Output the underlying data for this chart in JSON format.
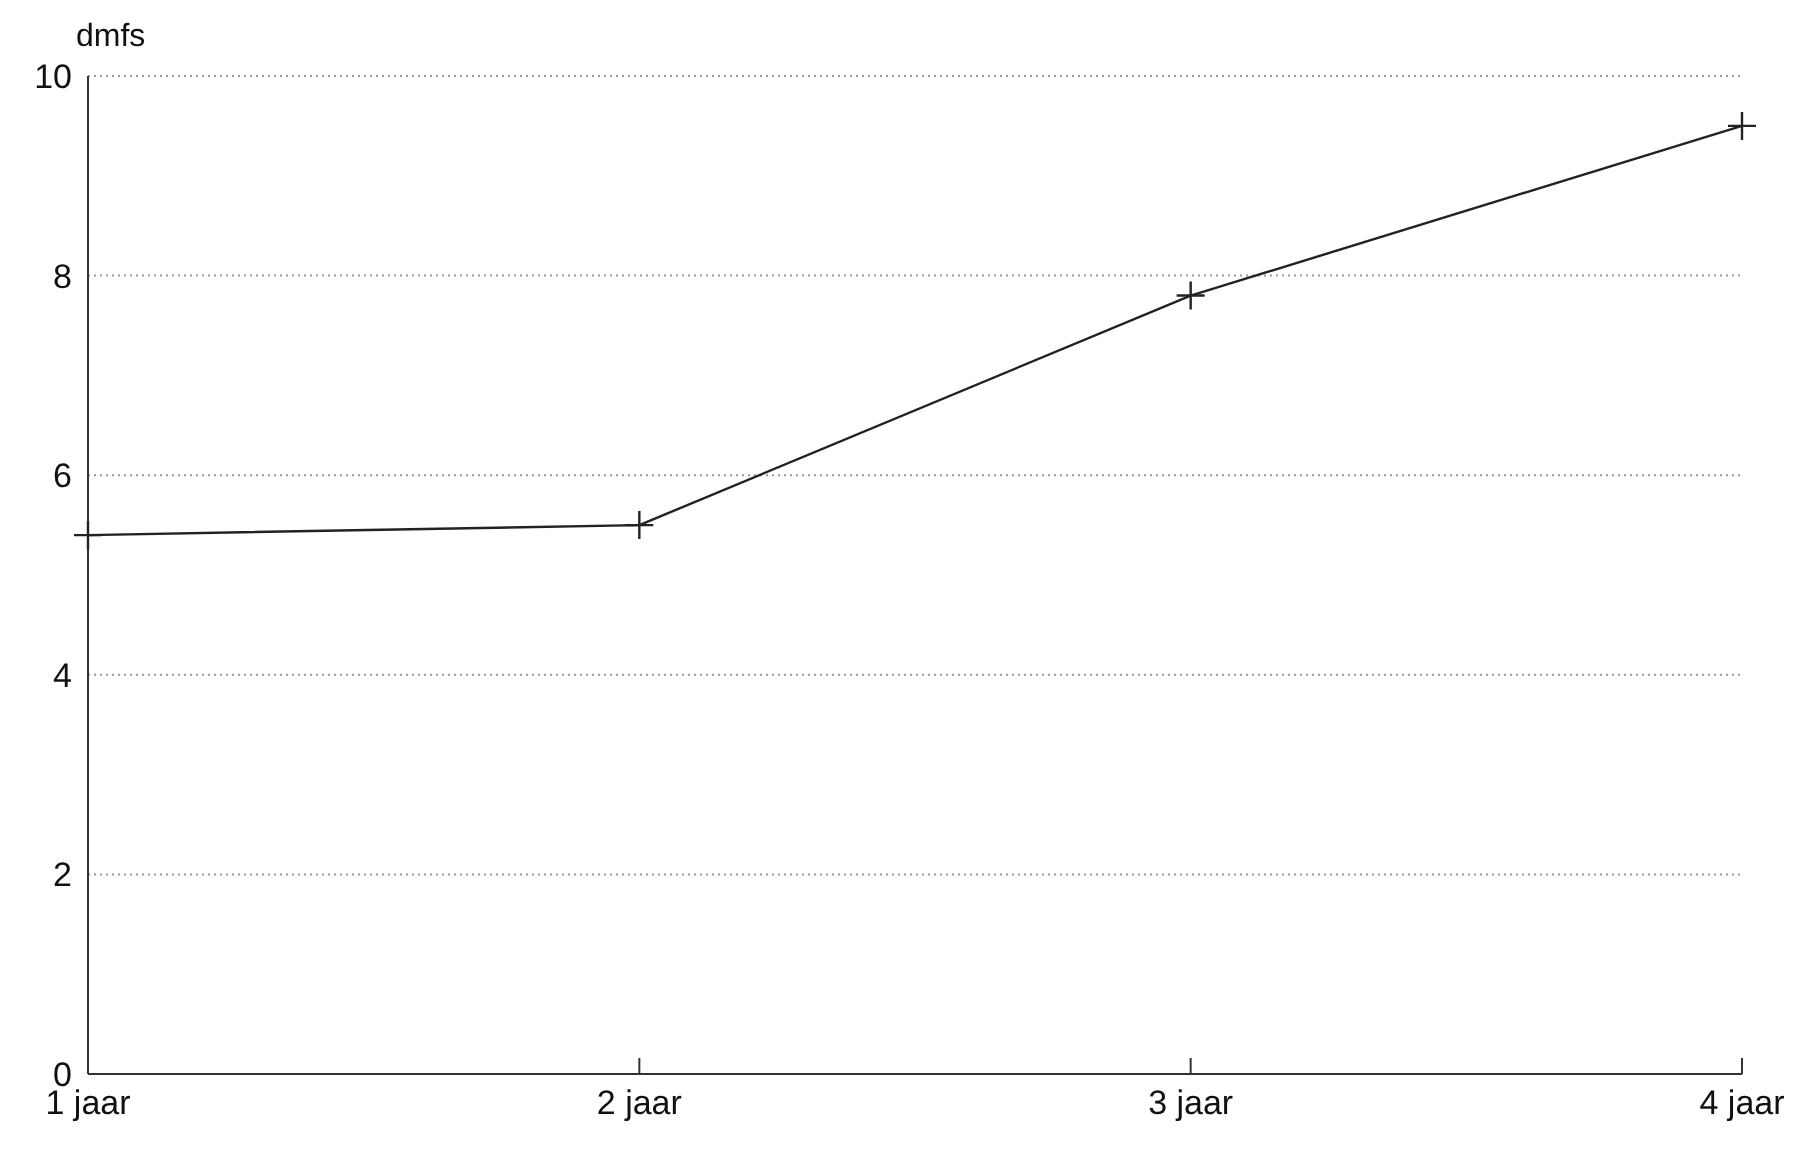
{
  "chart_data": {
    "type": "line",
    "ylabel": "dmfs",
    "categories": [
      "1 jaar",
      "2 jaar",
      "3 jaar",
      "4 jaar"
    ],
    "series": [
      {
        "color": "#222222",
        "values": [
          5.4,
          5.5,
          7.8,
          9.5
        ]
      }
    ],
    "ylim": [
      0,
      10
    ],
    "yticks": [
      0,
      2,
      4,
      6,
      8,
      10
    ],
    "grid": "y",
    "marker": "cross",
    "line_style": "solid"
  }
}
